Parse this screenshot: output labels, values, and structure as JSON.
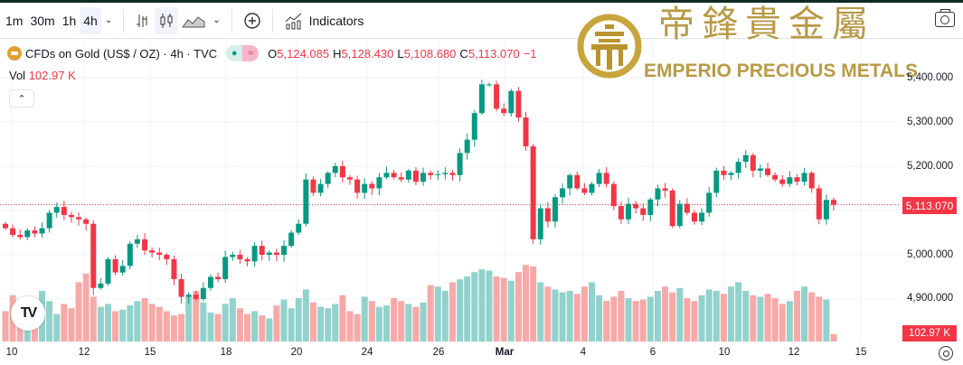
{
  "toolbar": {
    "intervals": [
      "1m",
      "30m",
      "1h",
      "4h"
    ],
    "active_interval": "4h",
    "indicators_label": "Indicators"
  },
  "legend": {
    "symbol": "CFDs on Gold (US$ / OZ) · 4h · TVC",
    "o_label": "O",
    "open": "5,124.085",
    "h_label": "H",
    "high": "5,128.430",
    "l_label": "L",
    "low": "5,108.680",
    "c_label": "C",
    "close": "5,113.070",
    "change": "−1",
    "vol_label": "Vol",
    "vol_value": "102.97 K"
  },
  "logo": {
    "emblem_char": "帝",
    "chinese": "帝鋒貴金屬",
    "english": "EMPERIO PRECIOUS METALS"
  },
  "price_axis": [
    "5,400.000",
    "5,300.000",
    "5,200.000",
    "5,000.000",
    "4,900.000"
  ],
  "current_price": "5,113.070",
  "current_volume": "102.97 K",
  "time_axis": [
    "10",
    "12",
    "15",
    "18",
    "20",
    "24",
    "26",
    "Mar",
    "4",
    "6",
    "10",
    "12",
    "15"
  ],
  "colors": {
    "up": "#089981",
    "down": "#f23645",
    "up_vol": "#92d2cc",
    "down_vol": "#f7a9a7"
  },
  "chart_data": {
    "type": "candlestick",
    "symbol": "CFDs on Gold (US$ / OZ)",
    "interval": "4h",
    "ylim": [
      4880,
      5420
    ],
    "yticks": [
      4900,
      5000,
      5100,
      5200,
      5300,
      5400
    ],
    "first_open": 5070,
    "closes": [
      5060,
      5045,
      5040,
      5055,
      5048,
      5060,
      5095,
      5108,
      5090,
      5085,
      5080,
      5070,
      4925,
      4935,
      4990,
      4960,
      4975,
      5025,
      5035,
      5010,
      5005,
      5000,
      4990,
      4945,
      4905,
      4910,
      4900,
      4925,
      4950,
      4945,
      4995,
      5000,
      4990,
      4985,
      5020,
      5000,
      5005,
      5000,
      5020,
      5050,
      5070,
      5170,
      5140,
      5160,
      5185,
      5200,
      5175,
      5170,
      5140,
      5160,
      5150,
      5175,
      5185,
      5175,
      5170,
      5190,
      5165,
      5185,
      5180,
      5182,
      5185,
      5180,
      5230,
      5260,
      5320,
      5385,
      5385,
      5330,
      5320,
      5370,
      5310,
      5245,
      5035,
      5105,
      5075,
      5130,
      5150,
      5180,
      5150,
      5140,
      5160,
      5185,
      5160,
      5110,
      5080,
      5115,
      5105,
      5090,
      5125,
      5150,
      5145,
      5065,
      5115,
      5095,
      5075,
      5095,
      5140,
      5190,
      5180,
      5185,
      5210,
      5225,
      5190,
      5195,
      5180,
      5170,
      5160,
      5175,
      5165,
      5185,
      5150,
      5080,
      5124,
      5113.07
    ],
    "volumes_k": [
      420,
      640,
      380,
      560,
      440,
      700,
      560,
      380,
      520,
      460,
      820,
      940,
      620,
      480,
      520,
      420,
      440,
      500,
      560,
      600,
      520,
      480,
      420,
      360,
      380,
      620,
      700,
      540,
      400,
      380,
      520,
      600,
      460,
      380,
      420,
      360,
      320,
      500,
      580,
      460,
      600,
      720,
      540,
      480,
      460,
      520,
      640,
      420,
      380,
      620,
      560,
      480,
      500,
      600,
      560,
      520,
      480,
      540,
      780,
      760,
      700,
      820,
      860,
      900,
      960,
      1000,
      980,
      900,
      880,
      840,
      960,
      1060,
      1040,
      820,
      760,
      720,
      680,
      700,
      660,
      760,
      820,
      640,
      560,
      620,
      700,
      600,
      560,
      580,
      620,
      700,
      760,
      680,
      740,
      600,
      560,
      640,
      720,
      700,
      660,
      760,
      820,
      700,
      640,
      620,
      660,
      600,
      520,
      560,
      700,
      760,
      680,
      620,
      580,
      103
    ]
  }
}
